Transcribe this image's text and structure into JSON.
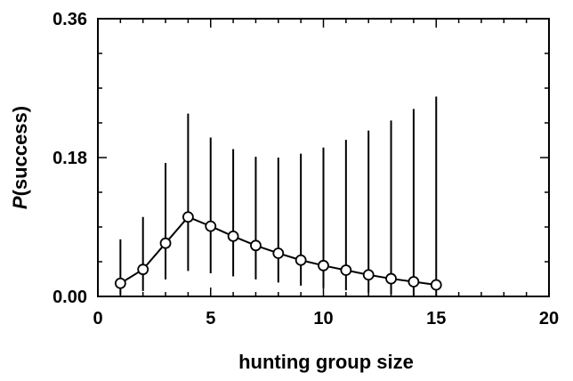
{
  "chart_data": {
    "type": "line",
    "title": "",
    "xlabel": "hunting group size",
    "ylabel": {
      "italic": "P",
      "rest": "(success)"
    },
    "xlim": [
      0,
      20
    ],
    "ylim": [
      0,
      0.36
    ],
    "xticks": [
      0,
      5,
      10,
      15,
      20
    ],
    "xtick_labels": [
      "0",
      "5",
      "10",
      "15",
      "20"
    ],
    "yticks": [
      0,
      0.18,
      0.36
    ],
    "ytick_labels": [
      "0.00",
      "0.18",
      "0.36"
    ],
    "x_minor_step": 1,
    "y_minor_step": 0.045,
    "grid": false,
    "legend": "none",
    "series": [
      {
        "x": [
          1,
          2,
          3,
          4,
          5,
          6,
          7,
          8,
          9,
          10,
          11,
          12,
          13,
          14,
          15
        ],
        "y": [
          0.017,
          0.035,
          0.069,
          0.103,
          0.091,
          0.078,
          0.066,
          0.056,
          0.047,
          0.04,
          0.034,
          0.028,
          0.023,
          0.019,
          0.015
        ],
        "error_low": [
          0.002,
          0.007,
          0.022,
          0.033,
          0.03,
          0.026,
          0.022,
          0.018,
          0.014,
          0.011,
          0.008,
          0.005,
          0.003,
          0.001,
          0.0
        ],
        "error_high": [
          0.074,
          0.103,
          0.173,
          0.237,
          0.206,
          0.191,
          0.181,
          0.18,
          0.185,
          0.193,
          0.203,
          0.215,
          0.228,
          0.243,
          0.259
        ],
        "marker": "open-circle",
        "color": "#000000"
      }
    ]
  }
}
